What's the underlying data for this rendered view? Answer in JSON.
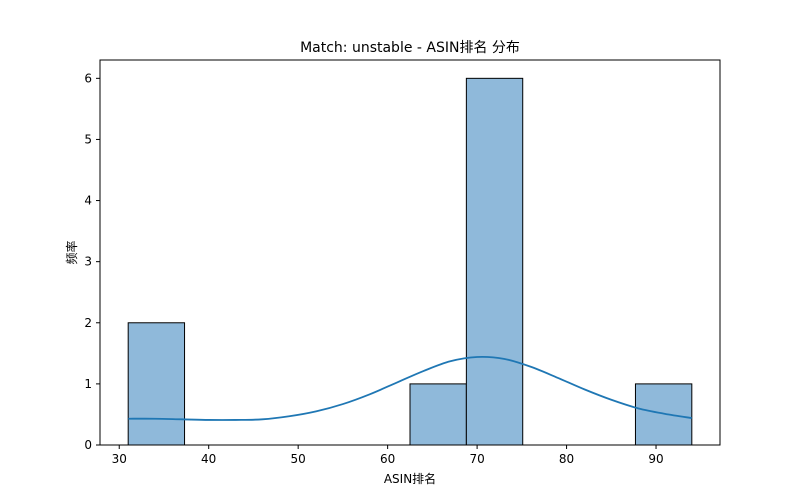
{
  "chart_data": {
    "type": "bar",
    "title": "Match: unstable - ASIN排名 分布",
    "xlabel": "ASIN排名",
    "ylabel": "频率",
    "xlim": [
      27.85,
      97.15
    ],
    "ylim": [
      0,
      6.3
    ],
    "x_ticks": [
      30,
      40,
      50,
      60,
      70,
      80,
      90
    ],
    "y_ticks": [
      0,
      1,
      2,
      3,
      4,
      5,
      6
    ],
    "grid": false,
    "bin_edges": [
      31.0,
      37.3,
      43.6,
      49.9,
      56.2,
      62.5,
      68.8,
      75.1,
      81.4,
      87.7,
      94.0
    ],
    "values": [
      2,
      0,
      0,
      0,
      0,
      1,
      6,
      0,
      0,
      1
    ],
    "kde": {
      "x": [
        31,
        34,
        37,
        40,
        43,
        46,
        49,
        52,
        55,
        58,
        61,
        64,
        67,
        70,
        73,
        76,
        79,
        82,
        85,
        88,
        91,
        94
      ],
      "y": [
        0.43,
        0.43,
        0.42,
        0.41,
        0.41,
        0.42,
        0.47,
        0.55,
        0.67,
        0.83,
        1.02,
        1.21,
        1.37,
        1.44,
        1.41,
        1.28,
        1.1,
        0.91,
        0.74,
        0.6,
        0.51,
        0.44
      ]
    },
    "colors": {
      "bar_fill": "#8fb9da",
      "bar_edge": "#000000",
      "kde_line": "#1f77b4"
    }
  }
}
